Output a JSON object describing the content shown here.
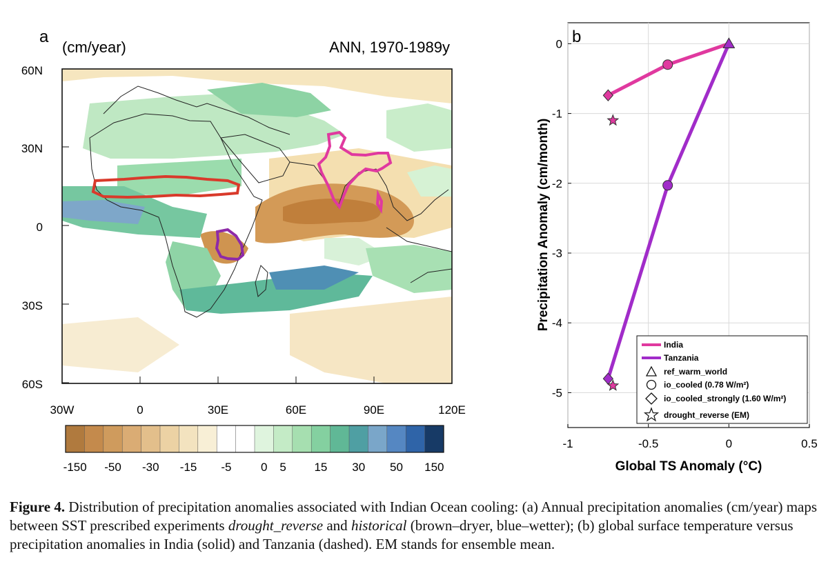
{
  "panel_a": {
    "letter": "a",
    "units": "(cm/year)",
    "period": "ANN, 1970-1989y",
    "lat_labels": [
      "60N",
      "30N",
      "0",
      "30S",
      "60S"
    ],
    "lon_labels": [
      "30W",
      "0",
      "30E",
      "60E",
      "90E",
      "120E"
    ],
    "colorbar": {
      "labels": [
        "-150",
        "-50",
        "-30",
        "-15",
        "-5",
        "0",
        "5",
        "15",
        "30",
        "50",
        "150"
      ],
      "colors": [
        "#b07a3e",
        "#c48a4c",
        "#cf9b5d",
        "#daac74",
        "#e3bf8b",
        "#ecd2a4",
        "#f3e3bf",
        "#f8efd6",
        "#ffffff",
        "#ffffff",
        "#dff4de",
        "#c4ebc6",
        "#a6dfb0",
        "#84d0a0",
        "#60b896",
        "#4f9fa3",
        "#7aa6c9",
        "#5587c2",
        "#2f64a8",
        "#173a66"
      ]
    },
    "colors": {
      "india": "#e0399f",
      "tanzania": "#8e2aa8",
      "sahel": "#d93a2b"
    }
  },
  "panel_b": {
    "letter": "b",
    "colors": {
      "india": "#e0399f",
      "tanzania": "#a12cc9"
    }
  },
  "chart_data": {
    "type": "line",
    "title": "",
    "xlabel": "Global TS Anomaly (°C)",
    "ylabel": "Precipitation Anomaly (cm/month)",
    "xlim": [
      -1,
      0.5
    ],
    "ylim": [
      -5.5,
      0.3
    ],
    "xticks": [
      "-1",
      "-0.5",
      "0",
      "0.5"
    ],
    "yticks": [
      "0",
      "-1",
      "-2",
      "-3",
      "-4",
      "-5"
    ],
    "series": [
      {
        "name": "India",
        "x": [
          0,
          -0.38,
          -0.75
        ],
        "y": [
          0,
          -0.3,
          -0.74
        ]
      },
      {
        "name": "Tanzania",
        "x": [
          0,
          -0.38,
          -0.75
        ],
        "y": [
          0,
          -2.03,
          -4.8
        ]
      }
    ],
    "drought_reverse": [
      {
        "name": "India",
        "x": -0.72,
        "y": -1.1
      },
      {
        "name": "Tanzania",
        "x": -0.72,
        "y": -4.9
      }
    ],
    "legend": {
      "placement": "bottom-right",
      "items": [
        "India",
        "Tanzania",
        "ref_warm_world",
        "io_cooled (0.78 W/m²)",
        "io_cooled_strongly (1.60 W/m²)",
        "drought_reverse (EM)"
      ]
    }
  },
  "caption": {
    "label": "Figure 4.",
    "part1": " Distribution of precipitation anomalies associated with Indian Ocean cooling: (a) Annual precipitation anomalies (cm/year) maps between SST prescribed experiments ",
    "exp1": "drought_reverse",
    "part2": " and ",
    "exp2": "historical",
    "part3": " (brown–dryer, blue–wetter); (b) global surface temperature versus precipitation anomalies in India (solid) and Tanzania (dashed). EM stands for ensemble mean."
  }
}
